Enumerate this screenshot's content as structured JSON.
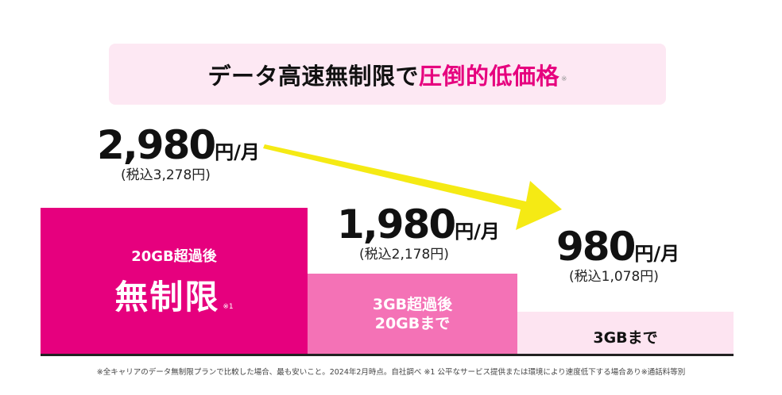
{
  "banner": {
    "text_main": "データ高速無制限で",
    "text_accent": "圧倒的低価格",
    "note": "※"
  },
  "chart_data": {
    "type": "bar",
    "title": "データ高速無制限で圧倒的低価格",
    "categories": [
      "20GB超過後 無制限",
      "3GB超過後 20GBまで",
      "3GBまで"
    ],
    "values": [
      2980,
      1980,
      980
    ],
    "tax_included": [
      3278,
      2178,
      1078
    ],
    "unit": "円/月",
    "colors": [
      "#e6007e",
      "#f472b6",
      "#fde4f1"
    ]
  },
  "plans": [
    {
      "price": "2,980",
      "unit": "円/月",
      "tax": "(税込3,278円)",
      "label_small": "20GB超過後",
      "label_big": "無制限",
      "label_note": "※1"
    },
    {
      "price": "1,980",
      "unit": "円/月",
      "tax": "(税込2,178円)",
      "label_line1": "3GB超過後",
      "label_line2": "20GBまで"
    },
    {
      "price": "980",
      "unit": "円/月",
      "tax": "(税込1,078円)",
      "label": "3GBまで"
    }
  ],
  "arrow_color": "#f5ea14",
  "footnote": "※全キャリアのデータ無制限プランで比較した場合、最も安いこと。2024年2月時点。自社調べ ※1 公平なサービス提供または環境により速度低下する場合あり※通話料等別"
}
